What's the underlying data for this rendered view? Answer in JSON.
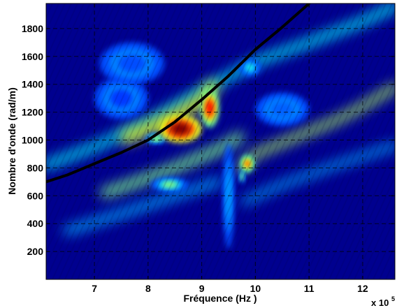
{
  "chart_data": {
    "type": "heatmap",
    "xlabel": "Fréquence (Hz )",
    "ylabel": "Nombre d'onde (rad/m)",
    "x_multiplier_base": "x 10",
    "x_multiplier_exponent": "5",
    "xlim": [
      6.1,
      12.6
    ],
    "ylim": [
      0,
      1980
    ],
    "x_ticks": [
      7,
      8,
      9,
      10,
      11,
      12
    ],
    "y_ticks": [
      200,
      400,
      600,
      800,
      1000,
      1200,
      1400,
      1600,
      1800
    ],
    "grid": true,
    "colormap": [
      "#00008f",
      "#0000ff",
      "#0080ff",
      "#00ffff",
      "#80ff80",
      "#ffff00",
      "#ff8000",
      "#ff0000",
      "#800000"
    ],
    "background_color": "#00008f",
    "dispersion_curve": {
      "color": "#000000",
      "x": [
        6.1,
        6.5,
        7.0,
        7.5,
        8.0,
        8.5,
        9.0,
        9.5,
        10.0,
        10.5,
        11.0
      ],
      "y": [
        700,
        750,
        830,
        910,
        1000,
        1130,
        1290,
        1460,
        1650,
        1810,
        1980
      ]
    },
    "energy_bands": [
      {
        "x": [
          6.1,
          7.0,
          8.0,
          9.0,
          10.0,
          11.0,
          12.0,
          12.6
        ],
        "y": [
          820,
          950,
          1130,
          1350,
          1560,
          1700,
          1850,
          1960
        ],
        "intensity": 0.38,
        "width": 60
      },
      {
        "x": [
          7.6,
          8.0,
          8.5,
          9.0,
          9.2
        ],
        "y": [
          1020,
          1080,
          1170,
          1280,
          1380
        ],
        "intensity": 0.6,
        "width": 90
      },
      {
        "x": [
          7.2,
          7.8,
          8.5,
          9.3,
          9.7
        ],
        "y": [
          620,
          700,
          800,
          930,
          1020
        ],
        "intensity": 0.5,
        "width": 70
      },
      {
        "x": [
          9.7,
          10.0,
          10.5,
          11.0,
          11.5,
          12.0,
          12.6
        ],
        "y": [
          790,
          900,
          980,
          1060,
          1140,
          1240,
          1380
        ],
        "intensity": 0.55,
        "width": 55
      },
      {
        "x": [
          6.5,
          7.5,
          8.5,
          9.3
        ],
        "y": [
          350,
          470,
          600,
          700
        ],
        "intensity": 0.3,
        "width": 60
      },
      {
        "x": [
          9.8,
          10.5,
          11.5,
          12.6
        ],
        "y": [
          560,
          680,
          820,
          960
        ],
        "intensity": 0.3,
        "width": 50
      }
    ],
    "hot_spots": [
      {
        "x": 8.6,
        "y": 1080,
        "rx": 0.4,
        "ry": 100,
        "intensity": 1.0
      },
      {
        "x": 9.15,
        "y": 1230,
        "rx": 0.17,
        "ry": 140,
        "intensity": 0.88
      },
      {
        "x": 8.15,
        "y": 1010,
        "rx": 0.2,
        "ry": 35,
        "intensity": 0.6
      },
      {
        "x": 9.85,
        "y": 830,
        "rx": 0.12,
        "ry": 60,
        "intensity": 0.82
      },
      {
        "x": 9.75,
        "y": 740,
        "rx": 0.05,
        "ry": 50,
        "intensity": 0.6
      },
      {
        "x": 8.4,
        "y": 680,
        "rx": 0.35,
        "ry": 50,
        "intensity": 0.52
      },
      {
        "x": 9.9,
        "y": 1520,
        "rx": 0.2,
        "ry": 60,
        "intensity": 0.4
      },
      {
        "x": 9.5,
        "y": 600,
        "rx": 0.1,
        "ry": 380,
        "intensity": 0.28
      },
      {
        "x": 10.5,
        "y": 1220,
        "rx": 0.5,
        "ry": 120,
        "intensity": 0.22
      },
      {
        "x": 7.7,
        "y": 1550,
        "rx": 0.6,
        "ry": 150,
        "intensity": 0.2
      },
      {
        "x": 7.5,
        "y": 1300,
        "rx": 0.5,
        "ry": 150,
        "intensity": 0.18
      }
    ]
  }
}
